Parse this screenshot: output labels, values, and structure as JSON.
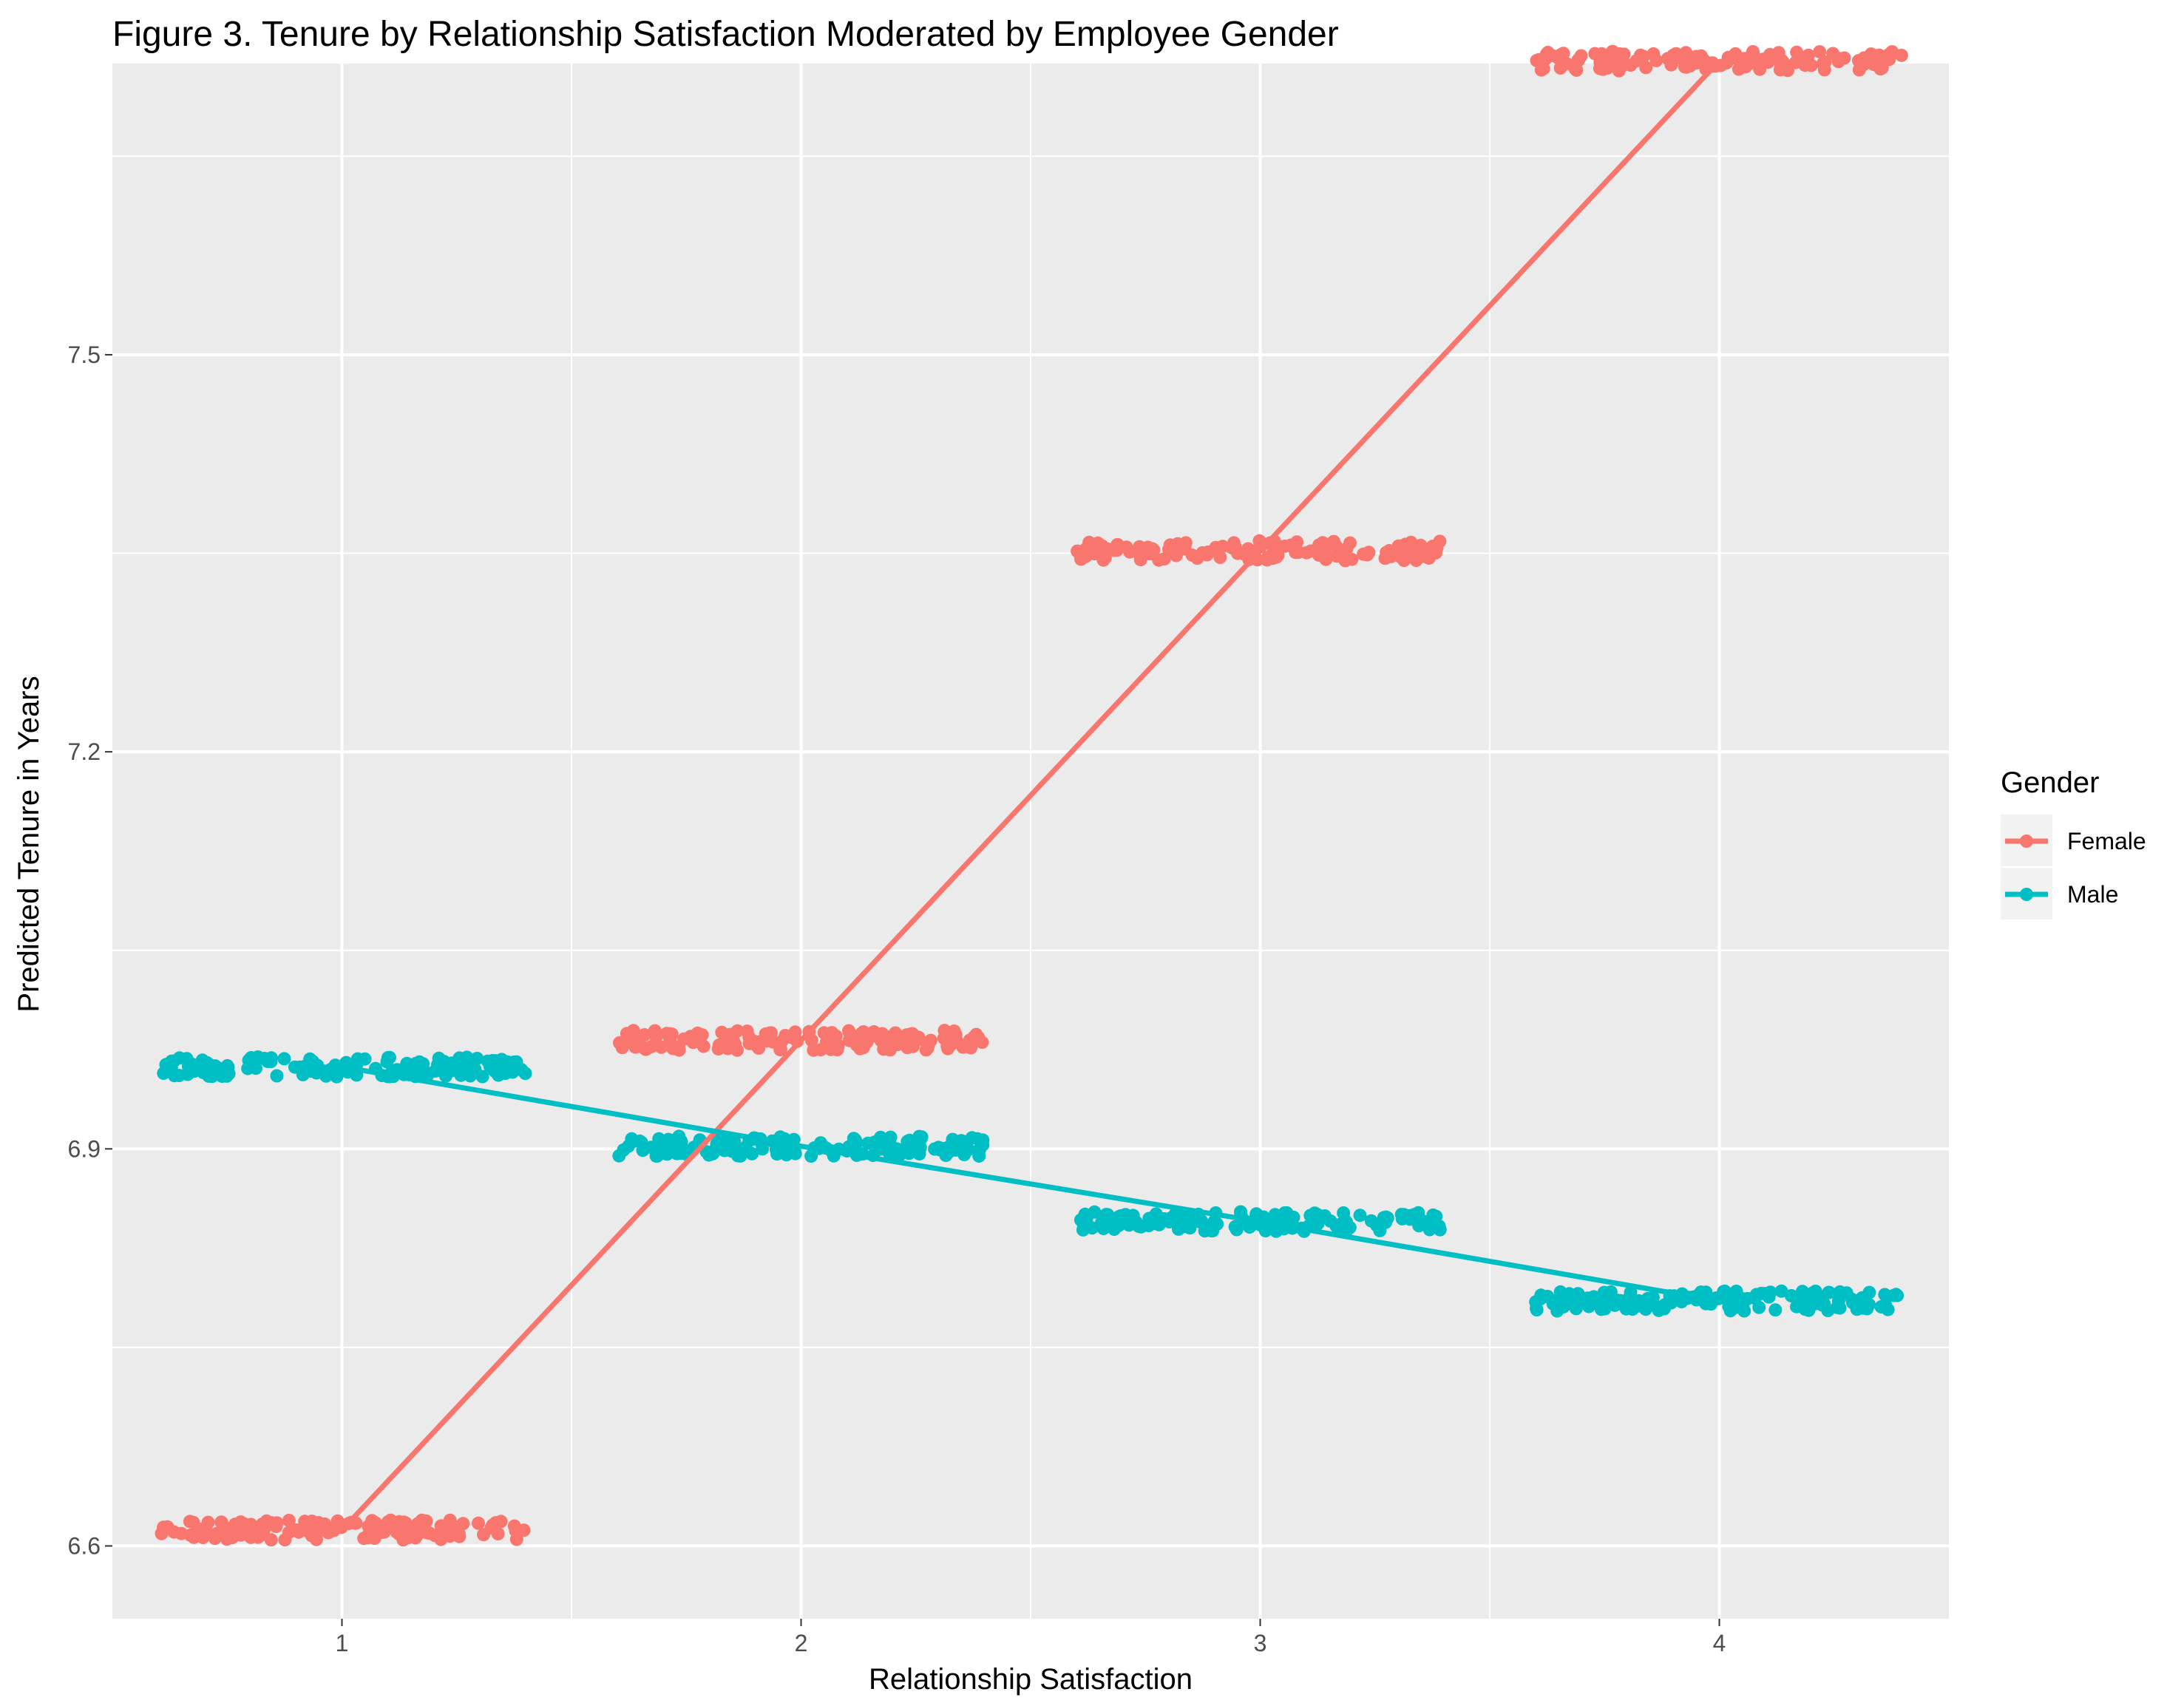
{
  "chart_data": {
    "type": "scatter",
    "title": "Figure 3. Tenure by Relationship Satisfaction Moderated by Employee Gender",
    "xlabel": "Relationship Satisfaction",
    "ylabel": "Predicted Tenure in Years",
    "x_ticks": [
      "1",
      "2",
      "3",
      "4"
    ],
    "y_ticks": [
      "6.6",
      "6.9",
      "7.2",
      "7.5"
    ],
    "xlim": [
      0.5,
      4.5
    ],
    "ylim": [
      6.545,
      7.72
    ],
    "grid": true,
    "legend_position": "right",
    "jitter_width": 0.4,
    "legend": {
      "title": "Gender"
    },
    "series": [
      {
        "name": "Female",
        "color": "#F8766D",
        "x": [
          1,
          2,
          3,
          4
        ],
        "y": [
          6.612,
          6.982,
          7.352,
          7.722
        ],
        "points_per_group": 140
      },
      {
        "name": "Male",
        "color": "#00BFC4",
        "x": [
          1,
          2,
          3,
          4
        ],
        "y": [
          6.962,
          6.902,
          6.845,
          6.785
        ],
        "points_per_group": 140
      }
    ]
  }
}
